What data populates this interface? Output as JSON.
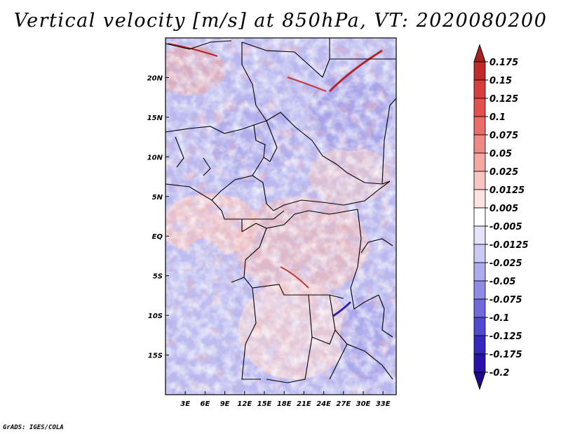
{
  "title": "Vertical velocity [m/s] at 850hPa, VT: 2020080200",
  "credit": "GrADS: IGES/COLA",
  "map": {
    "lat_labels": [
      "20N",
      "15N",
      "10N",
      "5N",
      "EQ",
      "5S",
      "10S",
      "15S"
    ],
    "lat_values": [
      20,
      15,
      10,
      5,
      0,
      -5,
      -10,
      -15
    ],
    "lon_labels": [
      "3E",
      "6E",
      "9E",
      "12E",
      "15E",
      "18E",
      "21E",
      "24E",
      "27E",
      "30E",
      "33E"
    ],
    "lon_values": [
      3,
      6,
      9,
      12,
      15,
      18,
      21,
      24,
      27,
      30,
      33
    ],
    "lon_range": [
      0,
      35
    ],
    "lat_range": [
      -20,
      25
    ]
  },
  "colorbar": {
    "labels": [
      "0.175",
      "0.15",
      "0.125",
      "0.1",
      "0.075",
      "0.05",
      "0.025",
      "0.0125",
      "0.005",
      "-0.005",
      "-0.0125",
      "-0.025",
      "-0.05",
      "-0.075",
      "-0.1",
      "-0.125",
      "-0.175",
      "-0.2"
    ],
    "colors": [
      "#aa1f22",
      "#c12a2b",
      "#d63d3c",
      "#e0514f",
      "#e86c68",
      "#ef8985",
      "#f4a7a3",
      "#f8c5c2",
      "#fce2e0",
      "#ffffff",
      "#e4e3fa",
      "#cac8f4",
      "#adaaee",
      "#8f8be6",
      "#6f69dc",
      "#5149cf",
      "#3528bd",
      "#2812a8",
      "#1f0890"
    ]
  }
}
